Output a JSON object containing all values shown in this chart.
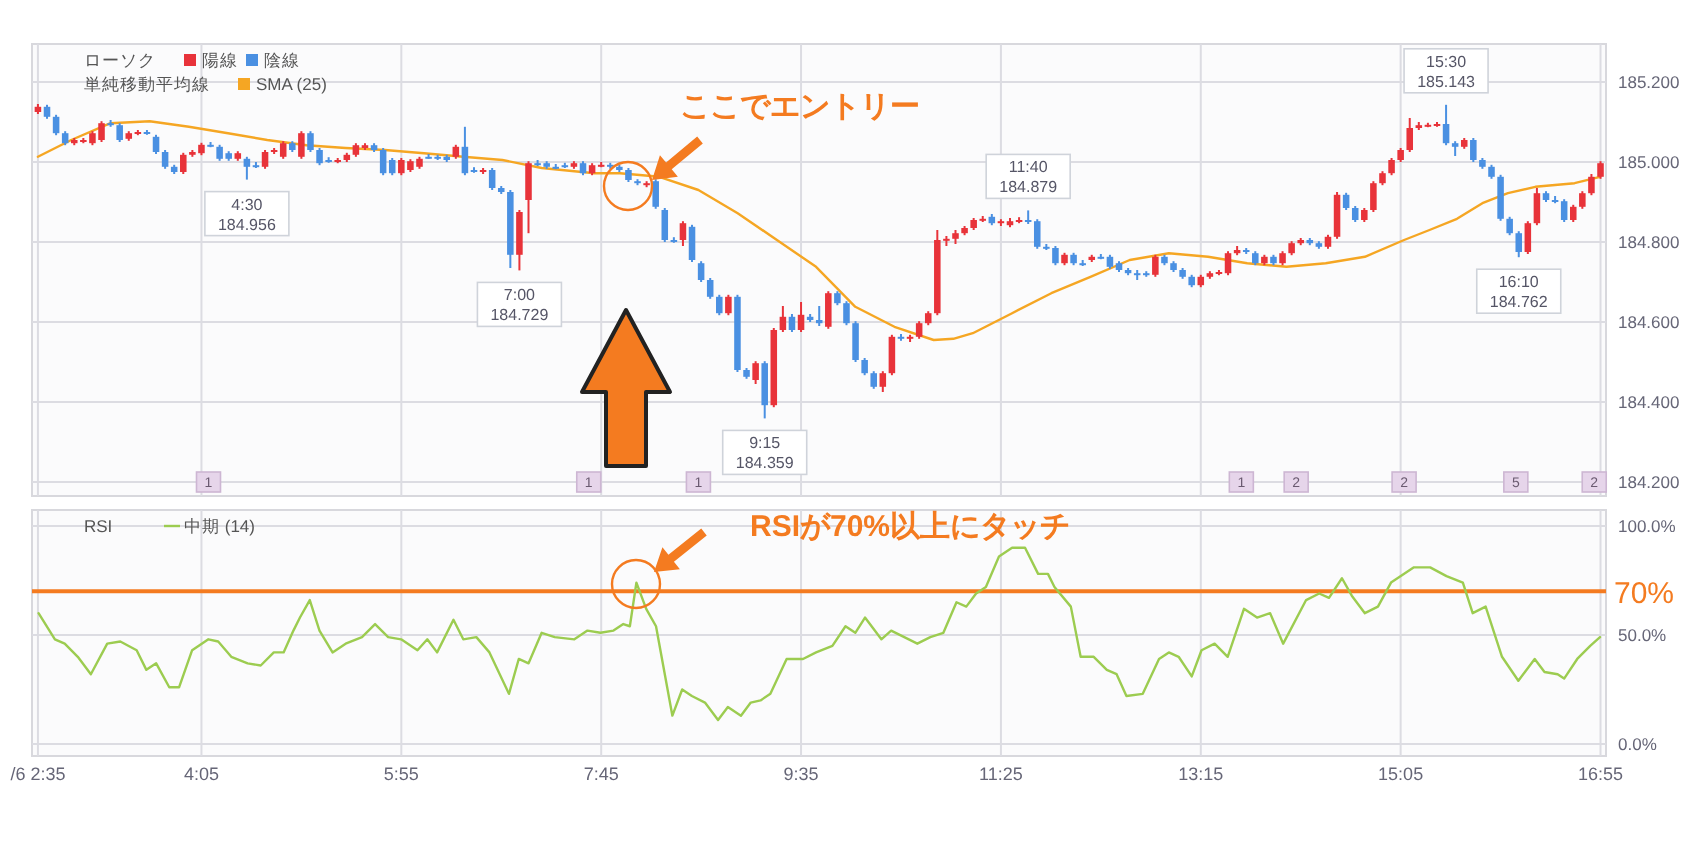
{
  "chart_data": [
    {
      "type": "candlestick",
      "legend_title": "ローソク",
      "legend": "top left",
      "grid": true,
      "tick_labels": "y",
      "xlim": [
        2.529,
        16.967
      ],
      "ylim": [
        184.165,
        185.295
      ],
      "xticks": [
        {
          "value": 2.5833,
          "label": null
        },
        {
          "value": 4.0833,
          "label": null
        },
        {
          "value": 5.9167,
          "label": null
        },
        {
          "value": 7.75,
          "label": null
        },
        {
          "value": 9.5833,
          "label": null
        },
        {
          "value": 11.4167,
          "label": null
        },
        {
          "value": 13.25,
          "label": null
        },
        {
          "value": 15.0833,
          "label": null
        },
        {
          "value": 16.9167,
          "label": null
        }
      ],
      "yticks": [
        {
          "value": 184.2,
          "label": "184.200"
        },
        {
          "value": 184.4,
          "label": "184.400"
        },
        {
          "value": 184.6,
          "label": "184.600"
        },
        {
          "value": 184.8,
          "label": "184.800"
        },
        {
          "value": 185.0,
          "label": "185.000"
        },
        {
          "value": 185.2,
          "label": "185.200"
        }
      ],
      "annotations": [
        "単純移動平均線",
        "ここでエントリー",
        {
          "text": "4:30 184.956",
          "x": 4.5,
          "y": 184.956
        },
        {
          "text": "7:00 184.729",
          "x": 7.0,
          "y": 184.729
        },
        {
          "text": "9:15 184.359",
          "x": 9.25,
          "y": 184.359
        },
        {
          "text": "11:40 184.879",
          "x": 11.6667,
          "y": 184.879
        },
        {
          "text": "15:30 185.143",
          "x": 15.5,
          "y": 185.143
        },
        {
          "text": "16:10 184.762",
          "x": 16.1667,
          "y": 184.762
        },
        {
          "text": "1",
          "x": 4.148,
          "y": 184.195
        },
        {
          "text": "1",
          "x": 7.636,
          "y": 184.195
        },
        {
          "text": "1",
          "x": 8.642,
          "y": 184.195
        },
        {
          "text": "1",
          "x": 13.622,
          "y": 184.195
        },
        {
          "text": "2",
          "x": 14.125,
          "y": 184.195
        },
        {
          "text": "2",
          "x": 15.115,
          "y": 184.195
        },
        {
          "text": "5",
          "x": 16.14,
          "y": 184.195
        },
        {
          "text": "2",
          "x": 16.859,
          "y": 184.195
        }
      ],
      "series": [
        {
          "name": "陽線",
          "type": "candlestick",
          "color": "#e8333a",
          "x": [
            2.5833,
            2.9167,
            3.0,
            3.0833,
            3.1667,
            3.4167,
            3.5,
            3.9167,
            4.0,
            4.0833,
            4.4167,
            4.6667,
            4.75,
            4.8333,
            5.0,
            5.3333,
            5.4167,
            5.5,
            5.5833,
            5.9167,
            6.0,
            6.0833,
            6.4167,
            6.6667,
            7.0,
            7.0833,
            7.5,
            7.6667,
            7.75,
            8.1667,
            8.5,
            8.9167,
            9.1667,
            9.3333,
            9.4167,
            9.5833,
            9.8333,
            10.3333,
            10.4167,
            10.5833,
            10.6667,
            10.75,
            10.8333,
            10.9167,
            11.0,
            11.0833,
            11.1667,
            11.25,
            11.4167,
            11.5,
            11.5833,
            12.0,
            12.25,
            12.8333,
            13.25,
            13.3333,
            13.4167,
            13.5,
            13.5833,
            13.8333,
            14.0,
            14.0833,
            14.1667,
            14.4167,
            14.5,
            14.75,
            14.8333,
            14.9167,
            15.0,
            15.0833,
            15.1667,
            15.25,
            15.3333,
            15.4167,
            15.6667,
            16.25,
            16.3333,
            16.6667,
            16.75,
            16.8333,
            16.9167
          ],
          "ohlc": [
            [
              185.125,
              185.145,
              185.12,
              185.138
            ],
            [
              185.047,
              185.06,
              185.042,
              185.055
            ],
            [
              185.052,
              185.06,
              185.047,
              185.055
            ],
            [
              185.047,
              185.077,
              185.042,
              185.072
            ],
            [
              185.055,
              185.102,
              185.05,
              185.097
            ],
            [
              185.058,
              185.077,
              185.053,
              185.072
            ],
            [
              185.072,
              185.08,
              185.067,
              185.075
            ],
            [
              184.975,
              185.023,
              184.97,
              185.018
            ],
            [
              185.018,
              185.03,
              185.013,
              185.025
            ],
            [
              185.022,
              185.048,
              185.017,
              185.043
            ],
            [
              185.008,
              185.027,
              185.003,
              185.022
            ],
            [
              184.988,
              185.03,
              184.983,
              185.025
            ],
            [
              185.025,
              185.035,
              185.02,
              185.03
            ],
            [
              185.013,
              185.052,
              185.008,
              185.047
            ],
            [
              185.013,
              185.077,
              185.008,
              185.072
            ],
            [
              185.002,
              185.01,
              184.997,
              185.005
            ],
            [
              185.005,
              185.023,
              185.0,
              185.018
            ],
            [
              185.018,
              185.047,
              185.013,
              185.042
            ],
            [
              185.035,
              185.047,
              185.03,
              185.042
            ],
            [
              184.972,
              185.01,
              184.967,
              185.005
            ],
            [
              184.98,
              185.007,
              184.975,
              185.002
            ],
            [
              184.988,
              185.013,
              184.983,
              185.008
            ],
            [
              185.013,
              185.043,
              185.008,
              185.038
            ],
            [
              184.975,
              184.985,
              184.97,
              184.98
            ],
            [
              184.768,
              184.88,
              184.729,
              184.875
            ],
            [
              184.905,
              185.002,
              184.822,
              184.997
            ],
            [
              184.988,
              185.002,
              184.983,
              184.997
            ],
            [
              184.972,
              184.997,
              184.967,
              184.992
            ],
            [
              184.992,
              185.0,
              184.987,
              184.993
            ],
            [
              184.942,
              184.952,
              184.937,
              184.947
            ],
            [
              184.805,
              184.852,
              184.79,
              184.847
            ],
            [
              184.622,
              184.668,
              184.617,
              184.663
            ],
            [
              184.455,
              184.502,
              184.445,
              184.497
            ],
            [
              184.392,
              184.585,
              184.387,
              184.58
            ],
            [
              184.58,
              184.64,
              184.575,
              184.613
            ],
            [
              184.58,
              184.65,
              184.575,
              184.618
            ],
            [
              184.588,
              184.677,
              184.583,
              184.672
            ],
            [
              184.438,
              184.477,
              184.425,
              184.472
            ],
            [
              184.472,
              184.568,
              184.467,
              184.563
            ],
            [
              184.558,
              184.568,
              184.55,
              184.563
            ],
            [
              184.563,
              184.602,
              184.558,
              184.597
            ],
            [
              184.597,
              184.627,
              184.592,
              184.622
            ],
            [
              184.622,
              184.83,
              184.617,
              184.805
            ],
            [
              184.805,
              184.815,
              184.79,
              184.808
            ],
            [
              184.808,
              184.83,
              184.795,
              184.822
            ],
            [
              184.822,
              184.84,
              184.817,
              184.835
            ],
            [
              184.835,
              184.86,
              184.83,
              184.855
            ],
            [
              184.855,
              184.865,
              184.85,
              184.858
            ],
            [
              184.847,
              184.857,
              184.84,
              184.852
            ],
            [
              184.842,
              184.86,
              184.837,
              184.852
            ],
            [
              184.852,
              184.862,
              184.847,
              184.855
            ],
            [
              184.747,
              184.773,
              184.742,
              184.768
            ],
            [
              184.755,
              184.768,
              184.75,
              184.763
            ],
            [
              184.718,
              184.768,
              184.713,
              184.763
            ],
            [
              184.692,
              184.718,
              184.687,
              184.713
            ],
            [
              184.713,
              184.727,
              184.708,
              184.722
            ],
            [
              184.722,
              184.73,
              184.717,
              184.725
            ],
            [
              184.722,
              184.777,
              184.717,
              184.772
            ],
            [
              184.772,
              184.79,
              184.767,
              184.78
            ],
            [
              184.747,
              184.768,
              184.742,
              184.763
            ],
            [
              184.747,
              184.777,
              184.742,
              184.772
            ],
            [
              184.772,
              184.802,
              184.767,
              184.797
            ],
            [
              184.797,
              184.81,
              184.792,
              184.805
            ],
            [
              184.788,
              184.818,
              184.783,
              184.813
            ],
            [
              184.813,
              184.925,
              184.808,
              184.918
            ],
            [
              184.855,
              184.885,
              184.85,
              184.88
            ],
            [
              184.88,
              184.952,
              184.875,
              184.947
            ],
            [
              184.947,
              184.977,
              184.942,
              184.972
            ],
            [
              184.972,
              185.01,
              184.967,
              185.005
            ],
            [
              185.005,
              185.035,
              185.0,
              185.03
            ],
            [
              185.03,
              185.11,
              185.025,
              185.085
            ],
            [
              185.085,
              185.1,
              185.08,
              185.092
            ],
            [
              185.092,
              185.098,
              185.087,
              185.093
            ],
            [
              185.092,
              185.1,
              185.088,
              185.095
            ],
            [
              185.038,
              185.06,
              185.033,
              185.055
            ],
            [
              184.775,
              184.852,
              184.77,
              184.847
            ],
            [
              184.847,
              184.935,
              184.842,
              184.922
            ],
            [
              184.855,
              184.893,
              184.85,
              184.888
            ],
            [
              184.888,
              184.927,
              184.883,
              184.922
            ],
            [
              184.922,
              184.97,
              184.917,
              184.963
            ],
            [
              184.963,
              185.002,
              184.958,
              184.997
            ]
          ]
        },
        {
          "name": "陰線",
          "type": "candlestick",
          "color": "#4a90e2",
          "x": [
            2.6667,
            2.75,
            2.8333,
            3.25,
            3.3333,
            3.5833,
            3.6667,
            3.75,
            3.8333,
            4.1667,
            4.25,
            4.3333,
            4.5,
            4.5833,
            4.9167,
            5.0833,
            5.1667,
            5.25,
            5.6667,
            5.75,
            5.8333,
            6.1667,
            6.25,
            6.3333,
            6.5,
            6.5833,
            6.75,
            6.8333,
            6.9167,
            7.1667,
            7.25,
            7.3333,
            7.4167,
            7.5833,
            7.8333,
            7.9167,
            8.0,
            8.0833,
            8.25,
            8.3333,
            8.4167,
            8.5833,
            8.6667,
            8.75,
            8.8333,
            9.0,
            9.0833,
            9.25,
            9.5,
            9.6667,
            9.75,
            9.9167,
            10.0,
            10.0833,
            10.1667,
            10.25,
            10.5,
            11.3333,
            11.6667,
            11.75,
            11.8333,
            11.9167,
            12.0833,
            12.1667,
            12.3333,
            12.4167,
            12.5,
            12.5833,
            12.6667,
            12.75,
            12.9167,
            13.0,
            13.0833,
            13.1667,
            13.6667,
            13.75,
            13.9167,
            14.25,
            14.3333,
            14.5833,
            14.6667,
            15.5,
            15.5833,
            15.75,
            15.8333,
            15.9167,
            16.0,
            16.0833,
            16.1667,
            16.4167,
            16.5,
            16.5833
          ],
          "ohlc": [
            [
              185.138,
              185.143,
              185.108,
              185.113
            ],
            [
              185.113,
              185.118,
              185.067,
              185.072
            ],
            [
              185.072,
              185.077,
              185.042,
              185.047
            ],
            [
              185.097,
              185.105,
              185.088,
              185.093
            ],
            [
              185.092,
              185.097,
              185.05,
              185.055
            ],
            [
              185.075,
              185.08,
              185.068,
              185.073
            ],
            [
              185.063,
              185.068,
              185.02,
              185.025
            ],
            [
              185.025,
              185.03,
              184.983,
              184.988
            ],
            [
              184.988,
              184.993,
              184.97,
              184.975
            ],
            [
              185.043,
              185.05,
              185.037,
              185.042
            ],
            [
              185.038,
              185.043,
              185.003,
              185.008
            ],
            [
              185.022,
              185.027,
              185.003,
              185.008
            ],
            [
              185.008,
              185.013,
              184.956,
              184.988
            ],
            [
              184.992,
              185.0,
              184.985,
              184.992
            ],
            [
              185.047,
              185.052,
              185.025,
              185.03
            ],
            [
              185.072,
              185.077,
              185.025,
              185.03
            ],
            [
              185.03,
              185.035,
              184.992,
              184.997
            ],
            [
              185.005,
              185.012,
              184.998,
              185.005
            ],
            [
              185.042,
              185.047,
              185.025,
              185.03
            ],
            [
              185.03,
              185.035,
              184.967,
              184.972
            ],
            [
              185.005,
              185.01,
              184.967,
              184.972
            ],
            [
              185.013,
              185.02,
              185.008,
              185.013
            ],
            [
              185.013,
              185.018,
              185.005,
              185.01
            ],
            [
              185.013,
              185.018,
              185.0,
              185.005
            ],
            [
              185.038,
              185.088,
              184.967,
              184.972
            ],
            [
              184.98,
              184.987,
              184.973,
              184.98
            ],
            [
              184.98,
              184.985,
              184.93,
              184.935
            ],
            [
              184.935,
              184.94,
              184.92,
              184.925
            ],
            [
              184.925,
              184.93,
              184.735,
              184.768
            ],
            [
              184.997,
              185.005,
              184.99,
              184.997
            ],
            [
              184.997,
              185.002,
              184.983,
              184.988
            ],
            [
              184.988,
              184.995,
              184.982,
              184.988
            ],
            [
              184.992,
              184.998,
              184.985,
              184.992
            ],
            [
              184.997,
              185.002,
              184.967,
              184.972
            ],
            [
              184.993,
              184.998,
              184.983,
              184.988
            ],
            [
              184.988,
              184.993,
              184.975,
              184.98
            ],
            [
              184.98,
              184.985,
              184.95,
              184.955
            ],
            [
              184.952,
              184.957,
              184.942,
              184.947
            ],
            [
              184.952,
              184.957,
              184.883,
              184.888
            ],
            [
              184.88,
              184.885,
              184.8,
              184.805
            ],
            [
              184.805,
              184.812,
              184.798,
              184.805
            ],
            [
              184.838,
              184.843,
              184.75,
              184.755
            ],
            [
              184.747,
              184.752,
              184.7,
              184.705
            ],
            [
              184.705,
              184.71,
              184.658,
              184.663
            ],
            [
              184.663,
              184.668,
              184.617,
              184.622
            ],
            [
              184.663,
              184.668,
              184.475,
              184.48
            ],
            [
              184.48,
              184.485,
              184.458,
              184.463
            ],
            [
              184.497,
              184.502,
              184.359,
              184.392
            ],
            [
              184.613,
              184.62,
              184.575,
              184.58
            ],
            [
              184.613,
              184.62,
              184.6,
              184.605
            ],
            [
              184.605,
              184.64,
              184.59,
              184.597
            ],
            [
              184.672,
              184.677,
              184.642,
              184.647
            ],
            [
              184.647,
              184.652,
              184.592,
              184.597
            ],
            [
              184.597,
              184.602,
              184.5,
              184.505
            ],
            [
              184.505,
              184.51,
              184.467,
              184.472
            ],
            [
              184.472,
              184.477,
              184.433,
              184.438
            ],
            [
              184.563,
              184.57,
              184.553,
              184.558
            ],
            [
              184.863,
              184.87,
              184.842,
              184.847
            ],
            [
              184.855,
              184.879,
              184.845,
              184.852
            ],
            [
              184.852,
              184.857,
              184.783,
              184.788
            ],
            [
              184.788,
              184.795,
              184.78,
              184.785
            ],
            [
              184.785,
              184.79,
              184.742,
              184.747
            ],
            [
              184.768,
              184.773,
              184.742,
              184.747
            ],
            [
              184.747,
              184.755,
              184.74,
              184.747
            ],
            [
              184.763,
              184.77,
              184.757,
              184.763
            ],
            [
              184.763,
              184.768,
              184.733,
              184.738
            ],
            [
              184.747,
              184.752,
              184.725,
              184.73
            ],
            [
              184.73,
              184.735,
              184.717,
              184.722
            ],
            [
              184.722,
              184.73,
              184.705,
              184.722
            ],
            [
              184.722,
              184.727,
              184.713,
              184.718
            ],
            [
              184.763,
              184.768,
              184.742,
              184.747
            ],
            [
              184.747,
              184.752,
              184.725,
              184.73
            ],
            [
              184.73,
              184.735,
              184.708,
              184.713
            ],
            [
              184.713,
              184.718,
              184.687,
              184.692
            ],
            [
              184.78,
              184.785,
              184.77,
              184.775
            ],
            [
              184.772,
              184.777,
              184.742,
              184.747
            ],
            [
              184.763,
              184.768,
              184.742,
              184.747
            ],
            [
              184.805,
              184.81,
              184.792,
              184.797
            ],
            [
              184.797,
              184.802,
              184.783,
              184.788
            ],
            [
              184.918,
              184.923,
              184.88,
              184.885
            ],
            [
              184.885,
              184.89,
              184.85,
              184.855
            ],
            [
              185.095,
              185.143,
              185.042,
              185.047
            ],
            [
              185.047,
              185.052,
              185.015,
              185.038
            ],
            [
              185.055,
              185.06,
              185.0,
              185.005
            ],
            [
              185.005,
              185.01,
              184.983,
              184.988
            ],
            [
              184.988,
              184.993,
              184.958,
              184.963
            ],
            [
              184.963,
              184.968,
              184.853,
              184.858
            ],
            [
              184.858,
              184.863,
              184.817,
              184.822
            ],
            [
              184.822,
              184.827,
              184.762,
              184.775
            ],
            [
              184.922,
              184.927,
              184.9,
              184.905
            ],
            [
              184.905,
              184.915,
              184.897,
              184.902
            ],
            [
              184.902,
              184.907,
              184.85,
              184.855
            ]
          ]
        },
        {
          "name": "SMA (25)",
          "type": "line",
          "color": "#f5a623",
          "x": [
            2.583,
            2.889,
            3.249,
            3.608,
            3.968,
            4.327,
            4.687,
            5.047,
            5.406,
            5.766,
            6.125,
            6.485,
            6.844,
            7.204,
            7.689,
            7.923,
            8.283,
            8.642,
            9.002,
            9.362,
            9.721,
            10.081,
            10.44,
            10.8,
            10.98,
            11.159,
            11.519,
            11.879,
            12.238,
            12.598,
            12.957,
            13.317,
            13.676,
            14.036,
            14.396,
            14.755,
            15.115,
            15.348,
            15.6,
            15.833,
            16.067,
            16.319,
            16.679,
            16.912
          ],
          "values": [
            185.013,
            185.055,
            185.097,
            185.102,
            185.088,
            185.072,
            185.055,
            185.042,
            185.035,
            185.03,
            185.022,
            185.013,
            185.005,
            184.985,
            184.972,
            184.972,
            184.963,
            184.93,
            184.872,
            184.805,
            184.738,
            184.638,
            184.588,
            184.555,
            184.558,
            184.572,
            184.622,
            184.672,
            184.713,
            184.755,
            184.772,
            184.763,
            184.747,
            184.738,
            184.747,
            184.763,
            184.805,
            184.83,
            184.858,
            184.897,
            184.922,
            184.938,
            184.947,
            184.963
          ]
        }
      ]
    },
    {
      "type": "line",
      "legend_title": "RSI",
      "legend": "top left",
      "grid": true,
      "xlim": [
        2.529,
        16.967
      ],
      "ylim": [
        -5.5,
        107.3
      ],
      "xticks": [
        {
          "value": 2.5833,
          "label": "/6 2:35"
        },
        {
          "value": 4.0833,
          "label": "4:05"
        },
        {
          "value": 5.9167,
          "label": "5:55"
        },
        {
          "value": 7.75,
          "label": "7:45"
        },
        {
          "value": 9.5833,
          "label": "9:35"
        },
        {
          "value": 11.4167,
          "label": "11:25"
        },
        {
          "value": 13.25,
          "label": "13:15"
        },
        {
          "value": 15.0833,
          "label": "15:05"
        },
        {
          "value": 16.9167,
          "label": "16:55"
        }
      ],
      "yticks": [
        {
          "value": 0,
          "label": "0.0%"
        },
        {
          "value": 50,
          "label": "50.0%"
        },
        {
          "value": 100,
          "label": "100.0%"
        }
      ],
      "ref_lines": [
        {
          "axis": "y",
          "value": 70,
          "label": "70%",
          "color": "#f47b20"
        }
      ],
      "annotations": [
        "RSIが70%以上にタッチ"
      ],
      "series": [
        {
          "name": "中期 (14)",
          "color": "#9ccc50",
          "x": [
            2.589,
            2.739,
            2.829,
            2.949,
            3.069,
            3.219,
            3.339,
            3.489,
            3.578,
            3.668,
            3.788,
            3.878,
            3.998,
            4.147,
            4.237,
            4.357,
            4.507,
            4.627,
            4.747,
            4.837,
            4.927,
            4.987,
            5.077,
            5.166,
            5.286,
            5.406,
            5.556,
            5.676,
            5.796,
            5.915,
            6.065,
            6.155,
            6.245,
            6.395,
            6.485,
            6.605,
            6.725,
            6.904,
            6.994,
            7.084,
            7.204,
            7.324,
            7.504,
            7.624,
            7.743,
            7.863,
            7.953,
            8.013,
            8.073,
            8.163,
            8.253,
            8.403,
            8.493,
            8.582,
            8.702,
            8.822,
            8.912,
            9.032,
            9.122,
            9.212,
            9.302,
            9.451,
            9.601,
            9.721,
            9.871,
            9.991,
            10.081,
            10.17,
            10.32,
            10.41,
            10.53,
            10.65,
            10.769,
            10.889,
            11.009,
            11.099,
            11.189,
            11.279,
            11.399,
            11.519,
            11.638,
            11.758,
            11.848,
            11.908,
            12.058,
            12.148,
            12.268,
            12.388,
            12.478,
            12.568,
            12.718,
            12.867,
            12.957,
            13.047,
            13.167,
            13.257,
            13.377,
            13.497,
            13.646,
            13.766,
            13.886,
            14.006,
            14.216,
            14.336,
            14.426,
            14.545,
            14.635,
            14.755,
            14.875,
            14.995,
            15.085,
            15.205,
            15.354,
            15.504,
            15.654,
            15.744,
            15.863,
            16.013,
            16.163,
            16.313,
            16.403,
            16.523,
            16.583,
            16.703,
            16.822,
            16.912
          ],
          "values": [
            60,
            48,
            46,
            40,
            32,
            46,
            47,
            43,
            34,
            37,
            26,
            26,
            43,
            48,
            47,
            40,
            37,
            36,
            42,
            42,
            52,
            58,
            66,
            52,
            42,
            46,
            49,
            55,
            49,
            48,
            43,
            48,
            42,
            57,
            48,
            49,
            42,
            23,
            39,
            37,
            51,
            49,
            48,
            52,
            51,
            52,
            55,
            54,
            74,
            62,
            54,
            13,
            25,
            22,
            19,
            11,
            17,
            13,
            19,
            20,
            23,
            39,
            39,
            42,
            45,
            54,
            51,
            58,
            48,
            52,
            49,
            46,
            49,
            51,
            65,
            63,
            69,
            72,
            86,
            90,
            90,
            78,
            78,
            72,
            63,
            40,
            40,
            34,
            32,
            22,
            23,
            39,
            42,
            40,
            31,
            43,
            46,
            40,
            62,
            58,
            60,
            46,
            66,
            69,
            67,
            76,
            68,
            60,
            63,
            74,
            77,
            81,
            81,
            77,
            74,
            60,
            63,
            40,
            29,
            39,
            33,
            32,
            30,
            39,
            45,
            49
          ]
        }
      ]
    }
  ]
}
